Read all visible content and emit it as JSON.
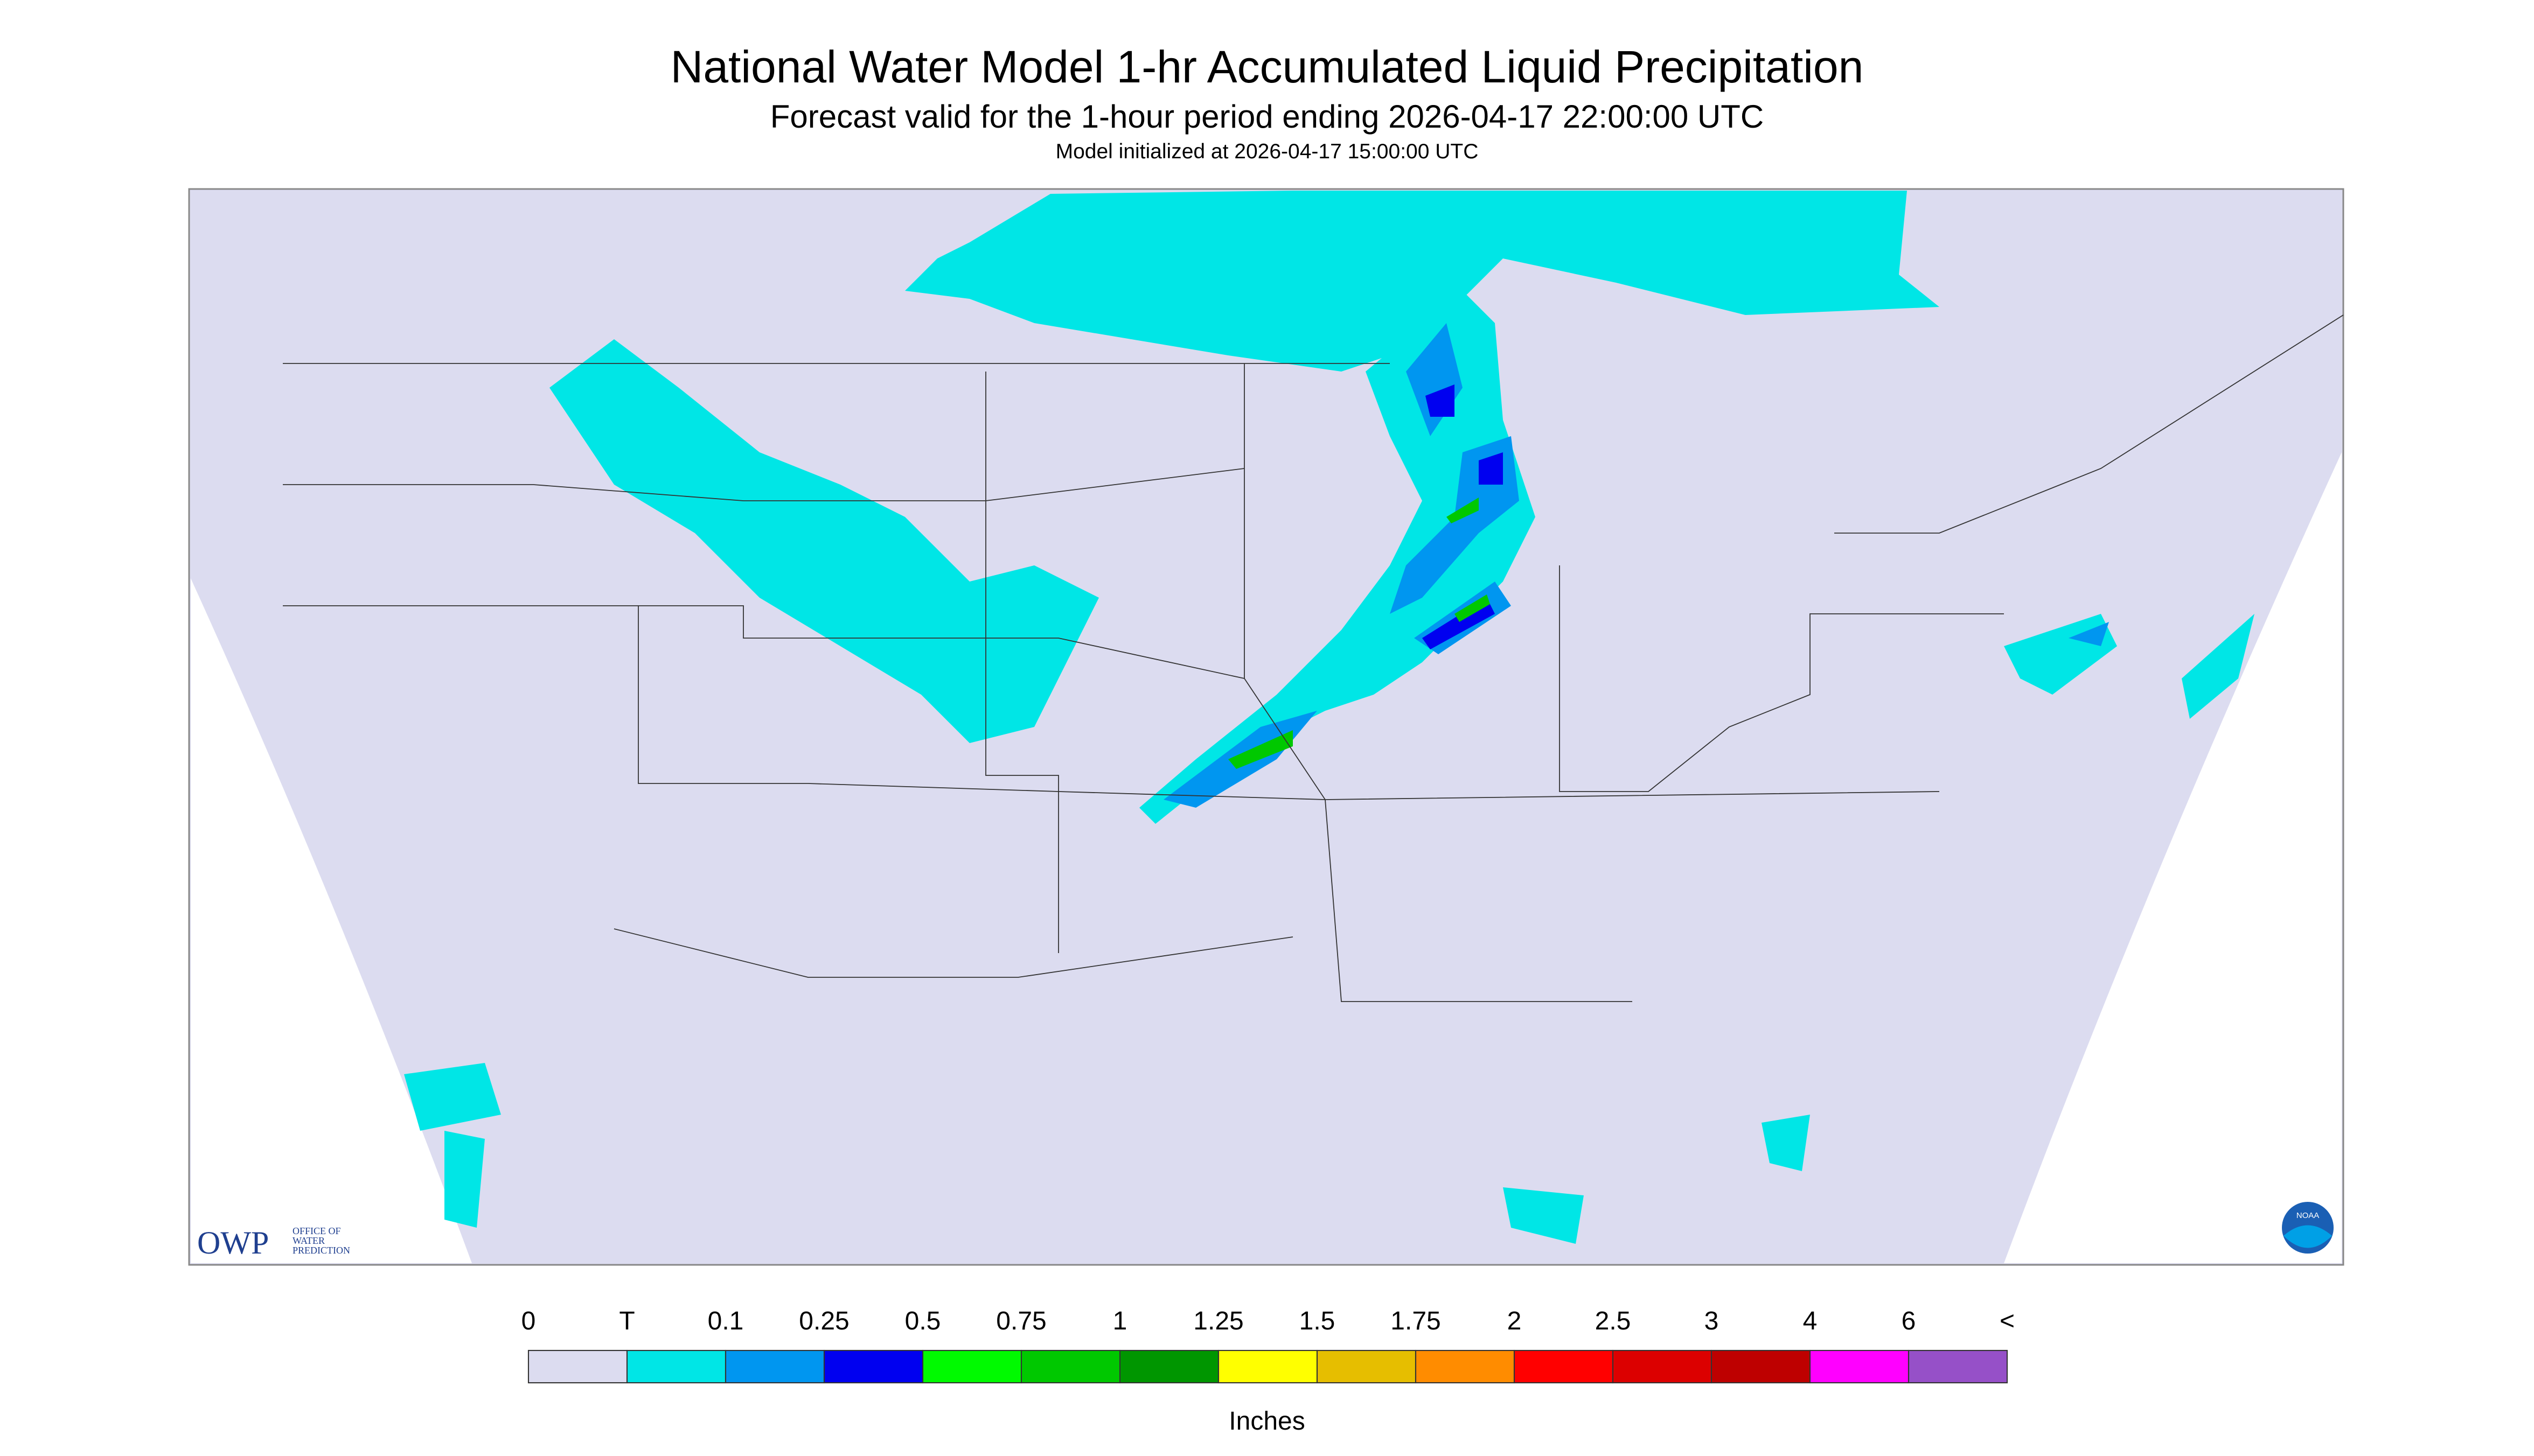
{
  "header": {
    "title": "National Water Model 1-hr Accumulated Liquid Precipitation",
    "subtitle": "Forecast valid for the 1-hour period ending 2026-04-17 22:00:00 UTC",
    "initialized": "Model initialized at 2026-04-17 15:00:00 UTC"
  },
  "logos": {
    "owp": "OWP",
    "owp_text": [
      "OFFICE OF",
      "WATER",
      "PREDICTION"
    ],
    "noaa": "NOAA"
  },
  "legend": {
    "labels": [
      "0",
      "T",
      "0.1",
      "0.25",
      "0.5",
      "0.75",
      "1",
      "1.25",
      "1.5",
      "1.75",
      "2",
      "2.5",
      "3",
      "4",
      "6",
      "<"
    ],
    "colors": [
      "#dcdcf0",
      "#00e6e6",
      "#0096f0",
      "#0000f0",
      "#00fa00",
      "#00c800",
      "#009600",
      "#ffff00",
      "#e6be00",
      "#ff8c00",
      "#ff0000",
      "#dc0000",
      "#be0000",
      "#ff00ff",
      "#9650c8"
    ],
    "unit": "Inches"
  }
}
